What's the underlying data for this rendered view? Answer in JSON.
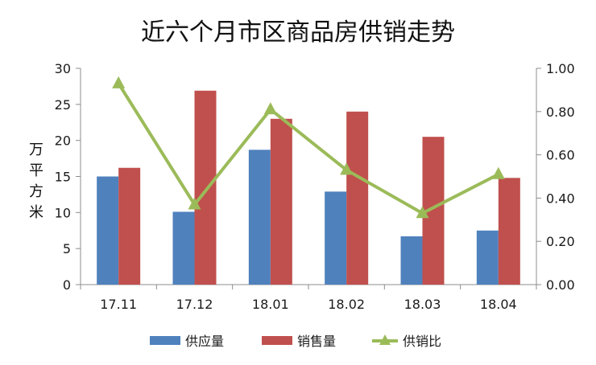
{
  "chart_data": {
    "type": "bar",
    "title": "近六个月市区商品房供销走势",
    "ylabel": "万平方米",
    "y2label": "",
    "categories": [
      "17.11",
      "17.12",
      "18.01",
      "18.02",
      "18.03",
      "18.04"
    ],
    "ylim": [
      0,
      30
    ],
    "y2lim": [
      0,
      1.0
    ],
    "yticks": [
      "0",
      "5",
      "10",
      "15",
      "20",
      "25",
      "30"
    ],
    "y2ticks": [
      "0.00",
      "0.20",
      "0.40",
      "0.60",
      "0.80",
      "1.00"
    ],
    "series": [
      {
        "name": "供应量",
        "type": "bar",
        "axis": "left",
        "color": "#4f81bd",
        "values": [
          15.0,
          10.1,
          18.7,
          12.9,
          6.7,
          7.5
        ]
      },
      {
        "name": "销售量",
        "type": "bar",
        "axis": "left",
        "color": "#c0504d",
        "values": [
          16.2,
          26.9,
          23.0,
          24.0,
          20.5,
          14.8
        ]
      },
      {
        "name": "供销比",
        "type": "line",
        "axis": "right",
        "color": "#9bbb59",
        "values": [
          0.93,
          0.37,
          0.81,
          0.53,
          0.33,
          0.51
        ]
      }
    ],
    "legend": "bottom",
    "grid": false
  }
}
